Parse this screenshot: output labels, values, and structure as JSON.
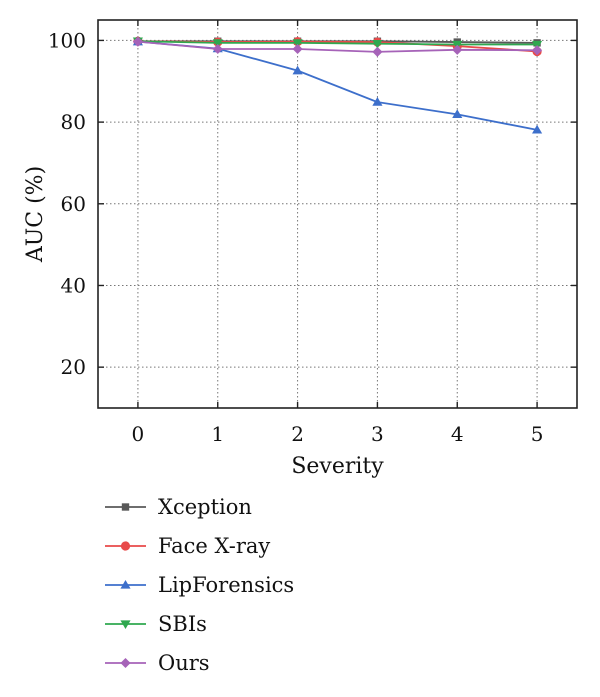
{
  "chart_data": {
    "type": "line",
    "title": "",
    "xlabel": "Severity",
    "ylabel": "AUC (%)",
    "x": [
      0,
      1,
      2,
      3,
      4,
      5
    ],
    "xlim": [
      -0.5,
      5.5
    ],
    "ylim": [
      10,
      105
    ],
    "x_ticks": [
      "0",
      "1",
      "2",
      "3",
      "4",
      "5"
    ],
    "y_ticks": [
      20,
      40,
      60,
      80,
      100
    ],
    "y_tick_labels": [
      "20",
      "40",
      "60",
      "80",
      "100"
    ],
    "grid": true,
    "grid_style": "dotted",
    "legend_position": "below",
    "series": [
      {
        "name": "Xception",
        "values": [
          99.8,
          99.8,
          99.8,
          99.8,
          99.6,
          99.4
        ],
        "color": "#595959",
        "marker": "square"
      },
      {
        "name": "Face X-ray",
        "values": [
          99.8,
          99.6,
          99.7,
          99.6,
          98.6,
          97.3
        ],
        "color": "#e84a4a",
        "marker": "circle"
      },
      {
        "name": "LipForensics",
        "values": [
          99.7,
          98.0,
          92.6,
          84.9,
          81.9,
          78.1
        ],
        "color": "#3d6fcb",
        "marker": "triangle-up"
      },
      {
        "name": "SBIs",
        "values": [
          99.8,
          99.4,
          99.4,
          99.2,
          99.0,
          99.0
        ],
        "color": "#2fa84f",
        "marker": "triangle-down"
      },
      {
        "name": "Ours",
        "values": [
          99.7,
          97.9,
          97.9,
          97.2,
          97.7,
          97.6
        ],
        "color": "#a663b8",
        "marker": "diamond"
      }
    ]
  }
}
